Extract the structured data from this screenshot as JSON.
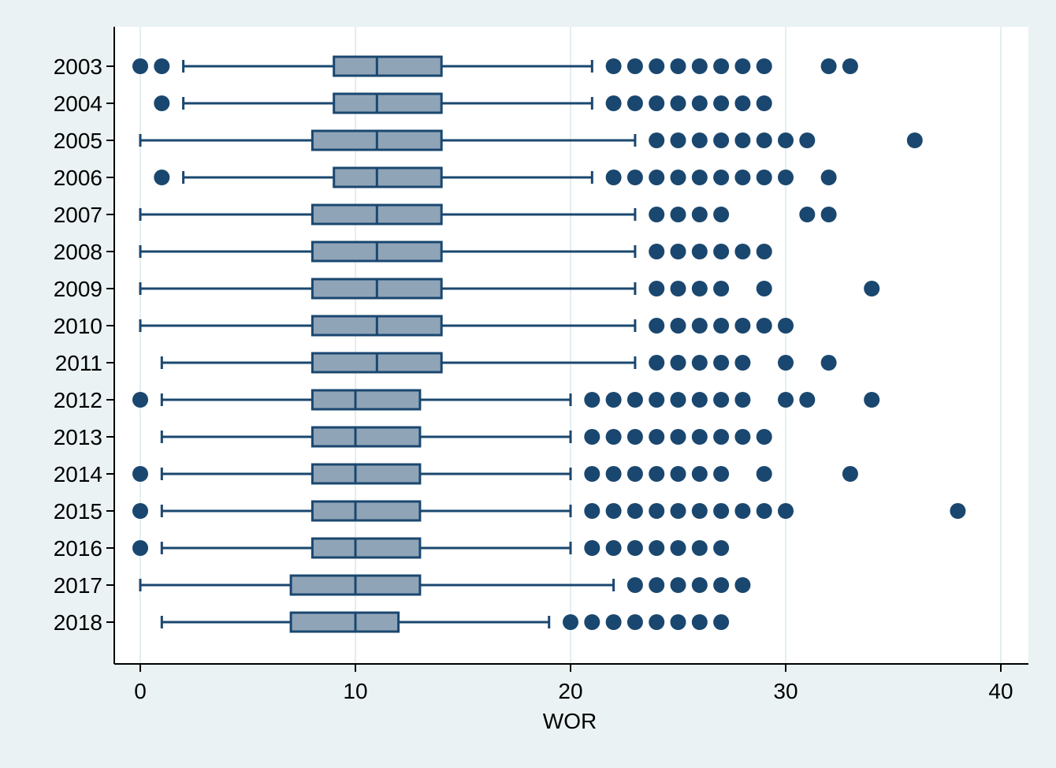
{
  "chart_data": {
    "type": "boxplot",
    "orientation": "horizontal",
    "title": "",
    "xlabel": "WOR",
    "ylabel": "",
    "xlim": [
      -1.2,
      41.3
    ],
    "xticks": [
      0,
      10,
      20,
      30,
      40
    ],
    "xtick_labels": [
      "0",
      "10",
      "20",
      "30",
      "40"
    ],
    "grid": "vertical lines at x ticks",
    "legend": "none",
    "colors": {
      "background": "#eaf2f3",
      "plot_background": "#ffffff",
      "grid": "#e3eef0",
      "box_fill": "#90a4b8",
      "box_edge": "#1a476f",
      "outlier": "#1a476f",
      "axis": "#000000"
    },
    "series": [
      {
        "category": "2003",
        "whisker_low": 2,
        "q1": 9,
        "median": 11,
        "q3": 14,
        "whisker_high": 21,
        "outliers": [
          0,
          1,
          22,
          23,
          24,
          25,
          26,
          27,
          28,
          29,
          32,
          33
        ]
      },
      {
        "category": "2004",
        "whisker_low": 2,
        "q1": 9,
        "median": 11,
        "q3": 14,
        "whisker_high": 21,
        "outliers": [
          1,
          22,
          23,
          24,
          25,
          26,
          27,
          28,
          29
        ]
      },
      {
        "category": "2005",
        "whisker_low": 0,
        "q1": 8,
        "median": 11,
        "q3": 14,
        "whisker_high": 23,
        "outliers": [
          24,
          25,
          26,
          27,
          28,
          29,
          30,
          31,
          36
        ]
      },
      {
        "category": "2006",
        "whisker_low": 2,
        "q1": 9,
        "median": 11,
        "q3": 14,
        "whisker_high": 21,
        "outliers": [
          1,
          22,
          23,
          24,
          25,
          26,
          27,
          28,
          29,
          30,
          32
        ]
      },
      {
        "category": "2007",
        "whisker_low": 0,
        "q1": 8,
        "median": 11,
        "q3": 14,
        "whisker_high": 23,
        "outliers": [
          24,
          25,
          26,
          27,
          31,
          32
        ]
      },
      {
        "category": "2008",
        "whisker_low": 0,
        "q1": 8,
        "median": 11,
        "q3": 14,
        "whisker_high": 23,
        "outliers": [
          24,
          25,
          26,
          27,
          28,
          29
        ]
      },
      {
        "category": "2009",
        "whisker_low": 0,
        "q1": 8,
        "median": 11,
        "q3": 14,
        "whisker_high": 23,
        "outliers": [
          24,
          25,
          26,
          27,
          29,
          34
        ]
      },
      {
        "category": "2010",
        "whisker_low": 0,
        "q1": 8,
        "median": 11,
        "q3": 14,
        "whisker_high": 23,
        "outliers": [
          24,
          25,
          26,
          27,
          28,
          29,
          30
        ]
      },
      {
        "category": "2011",
        "whisker_low": 1,
        "q1": 8,
        "median": 11,
        "q3": 14,
        "whisker_high": 23,
        "outliers": [
          24,
          25,
          26,
          27,
          28,
          30,
          32
        ]
      },
      {
        "category": "2012",
        "whisker_low": 1,
        "q1": 8,
        "median": 10,
        "q3": 13,
        "whisker_high": 20,
        "outliers": [
          0,
          21,
          22,
          23,
          24,
          25,
          26,
          27,
          28,
          30,
          31,
          34
        ]
      },
      {
        "category": "2013",
        "whisker_low": 1,
        "q1": 8,
        "median": 10,
        "q3": 13,
        "whisker_high": 20,
        "outliers": [
          21,
          22,
          23,
          24,
          25,
          26,
          27,
          28,
          29
        ]
      },
      {
        "category": "2014",
        "whisker_low": 1,
        "q1": 8,
        "median": 10,
        "q3": 13,
        "whisker_high": 20,
        "outliers": [
          0,
          21,
          22,
          23,
          24,
          25,
          26,
          27,
          29,
          33
        ]
      },
      {
        "category": "2015",
        "whisker_low": 1,
        "q1": 8,
        "median": 10,
        "q3": 13,
        "whisker_high": 20,
        "outliers": [
          0,
          21,
          22,
          23,
          24,
          25,
          26,
          27,
          28,
          29,
          30,
          38
        ]
      },
      {
        "category": "2016",
        "whisker_low": 1,
        "q1": 8,
        "median": 10,
        "q3": 13,
        "whisker_high": 20,
        "outliers": [
          0,
          21,
          22,
          23,
          24,
          25,
          26,
          27
        ]
      },
      {
        "category": "2017",
        "whisker_low": 0,
        "q1": 7,
        "median": 10,
        "q3": 13,
        "whisker_high": 22,
        "outliers": [
          23,
          24,
          25,
          26,
          27,
          28
        ]
      },
      {
        "category": "2018",
        "whisker_low": 1,
        "q1": 7,
        "median": 10,
        "q3": 12,
        "whisker_high": 19,
        "outliers": [
          20,
          21,
          22,
          23,
          24,
          25,
          26,
          27
        ]
      }
    ]
  }
}
